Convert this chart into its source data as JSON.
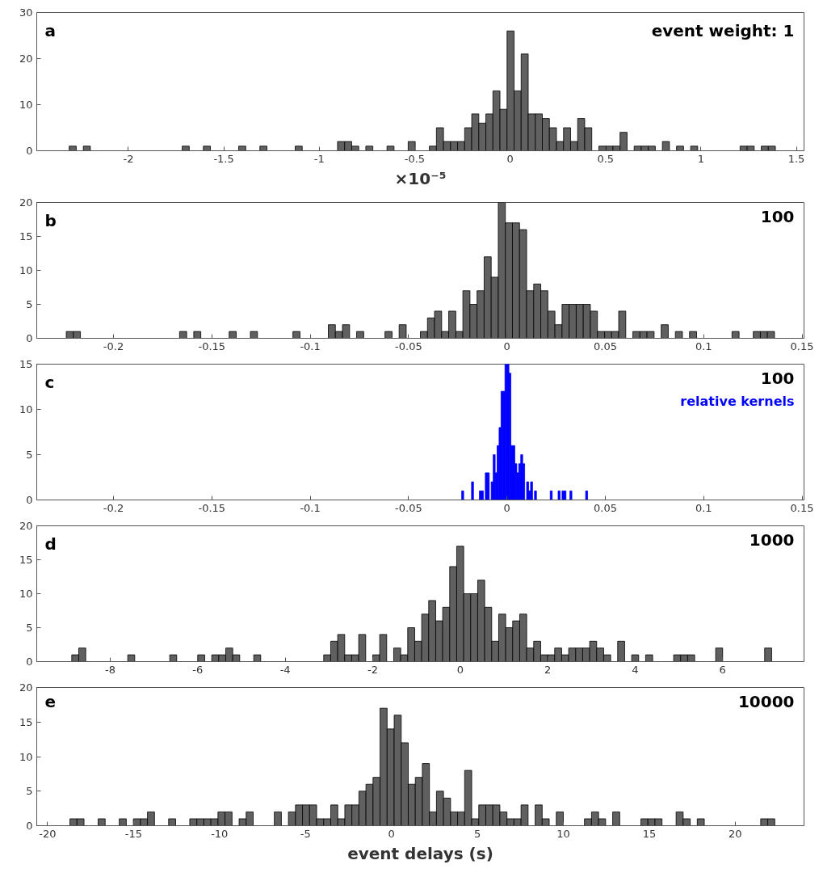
{
  "chart_data": [
    {
      "type": "histogram",
      "color": "#606060",
      "xlabel": "×10⁻⁵",
      "annotations": [
        "a",
        "event weight: 1"
      ],
      "xlim": [
        -2.48,
        1.54
      ],
      "xticks": [
        -2,
        -1.5,
        -1,
        -0.5,
        0,
        0.5,
        1,
        1.5
      ],
      "ylim": [
        0,
        30
      ],
      "yticks": [
        0,
        10,
        20,
        30
      ],
      "bins": [
        -2.31,
        -2.273,
        -2.236,
        -2.199,
        -2.162,
        -2.125,
        -2.088,
        -2.051,
        -2.014,
        -1.977,
        -1.94,
        -1.903,
        -1.866,
        -1.829,
        -1.792,
        -1.755,
        -1.718,
        -1.681,
        -1.644,
        -1.607,
        -1.57,
        -1.533,
        -1.496,
        -1.459,
        -1.422,
        -1.385,
        -1.348,
        -1.311,
        -1.274,
        -1.237,
        -1.2,
        -1.163,
        -1.126,
        -1.089,
        -1.052,
        -1.015,
        -0.978,
        -0.941,
        -0.904,
        -0.867,
        -0.83,
        -0.793,
        -0.756,
        -0.719,
        -0.682,
        -0.645,
        -0.608,
        -0.571,
        -0.534,
        -0.497,
        -0.46,
        -0.423,
        -0.386,
        -0.349,
        -0.312,
        -0.275,
        -0.238,
        -0.201,
        -0.164,
        -0.127,
        -0.09,
        -0.053,
        -0.016,
        0.021,
        0.058,
        0.095,
        0.132,
        0.169,
        0.206,
        0.243,
        0.28,
        0.317,
        0.354,
        0.391,
        0.428,
        0.465,
        0.502,
        0.539,
        0.576,
        0.613,
        0.65,
        0.687,
        0.724,
        0.761,
        0.798,
        0.835,
        0.872,
        0.909,
        0.946,
        0.983,
        1.02,
        1.057,
        1.094,
        1.131,
        1.168,
        1.205,
        1.242,
        1.279,
        1.316,
        1.353,
        1.39
      ],
      "values": [
        1,
        0,
        1,
        0,
        0,
        0,
        0,
        0,
        0,
        0,
        0,
        0,
        0,
        0,
        0,
        0,
        1,
        0,
        0,
        1,
        0,
        0,
        0,
        0,
        1,
        0,
        0,
        1,
        0,
        0,
        0,
        0,
        1,
        0,
        0,
        0,
        0,
        0,
        2,
        2,
        1,
        0,
        1,
        0,
        0,
        1,
        0,
        0,
        2,
        0,
        0,
        1,
        5,
        2,
        2,
        2,
        5,
        8,
        6,
        8,
        13,
        9,
        26,
        13,
        21,
        8,
        8,
        7,
        5,
        2,
        5,
        2,
        7,
        5,
        0,
        1,
        1,
        1,
        4,
        0,
        1,
        1,
        1,
        0,
        2,
        0,
        1,
        0,
        1,
        0,
        0,
        0,
        0,
        0,
        0,
        1,
        1,
        0,
        1,
        1
      ]
    },
    {
      "type": "histogram",
      "color": "#606060",
      "annotations": [
        "b",
        "100"
      ],
      "xlim": [
        -0.239,
        0.151
      ],
      "xticks": [
        -0.2,
        -0.15,
        -0.1,
        -0.05,
        0,
        0.05,
        0.1,
        0.15
      ],
      "ylim": [
        0,
        20
      ],
      "yticks": [
        0,
        5,
        10,
        15,
        20
      ],
      "bins": [
        -0.224,
        -0.2204,
        -0.2168,
        -0.2132,
        -0.2096,
        -0.206,
        -0.2024,
        -0.1988,
        -0.1952,
        -0.1916,
        -0.188,
        -0.1844,
        -0.1808,
        -0.1772,
        -0.1736,
        -0.17,
        -0.1664,
        -0.1628,
        -0.1592,
        -0.1556,
        -0.152,
        -0.1484,
        -0.1448,
        -0.1412,
        -0.1376,
        -0.134,
        -0.1304,
        -0.1268,
        -0.1232,
        -0.1196,
        -0.116,
        -0.1124,
        -0.1088,
        -0.1052,
        -0.1016,
        -0.098,
        -0.0944,
        -0.0908,
        -0.0872,
        -0.0836,
        -0.08,
        -0.0764,
        -0.0728,
        -0.0692,
        -0.0656,
        -0.062,
        -0.0584,
        -0.0548,
        -0.0512,
        -0.0476,
        -0.044,
        -0.0404,
        -0.0368,
        -0.0332,
        -0.0296,
        -0.026,
        -0.0224,
        -0.0188,
        -0.0152,
        -0.0116,
        -0.008,
        -0.0044,
        -0.0008,
        0.0028,
        0.0064,
        0.01,
        0.0136,
        0.0172,
        0.0208,
        0.0244,
        0.028,
        0.0316,
        0.0352,
        0.0388,
        0.0424,
        0.046,
        0.0496,
        0.0532,
        0.0568,
        0.0604,
        0.064,
        0.0676,
        0.0712,
        0.0748,
        0.0784,
        0.082,
        0.0856,
        0.0892,
        0.0928,
        0.0964,
        0.1,
        0.1036,
        0.1072,
        0.1108,
        0.1144,
        0.118,
        0.1216,
        0.1252,
        0.1288,
        0.1324,
        0.136
      ],
      "values": [
        1,
        1,
        0,
        0,
        0,
        0,
        0,
        0,
        0,
        0,
        0,
        0,
        0,
        0,
        0,
        0,
        1,
        0,
        1,
        0,
        0,
        0,
        0,
        1,
        0,
        0,
        1,
        0,
        0,
        0,
        0,
        0,
        1,
        0,
        0,
        0,
        0,
        2,
        1,
        2,
        0,
        1,
        0,
        0,
        0,
        1,
        0,
        2,
        0,
        0,
        1,
        3,
        4,
        1,
        4,
        1,
        7,
        5,
        7,
        12,
        9,
        20,
        17,
        17,
        16,
        7,
        8,
        7,
        4,
        2,
        5,
        5,
        5,
        5,
        4,
        1,
        1,
        1,
        4,
        0,
        1,
        1,
        1,
        0,
        2,
        0,
        1,
        0,
        1,
        0,
        0,
        0,
        0,
        0,
        1,
        0,
        0,
        1,
        1,
        1
      ]
    },
    {
      "type": "histogram",
      "color": "#0000ff",
      "annotations": [
        "c",
        "100",
        "relative kernels"
      ],
      "xlim": [
        -0.239,
        0.151
      ],
      "xticks": [
        -0.2,
        -0.15,
        -0.1,
        -0.05,
        0,
        0.05,
        0.1,
        0.15
      ],
      "ylim": [
        0,
        15
      ],
      "yticks": [
        0,
        5,
        10,
        15
      ],
      "bins": [
        -0.023,
        -0.022,
        -0.021,
        -0.02,
        -0.019,
        -0.018,
        -0.017,
        -0.016,
        -0.015,
        -0.014,
        -0.013,
        -0.012,
        -0.011,
        -0.01,
        -0.009,
        -0.008,
        -0.007,
        -0.006,
        -0.005,
        -0.004,
        -0.003,
        -0.002,
        -0.001,
        0,
        0.001,
        0.002,
        0.003,
        0.004,
        0.005,
        0.006,
        0.007,
        0.008,
        0.009,
        0.01,
        0.011,
        0.012,
        0.013,
        0.014,
        0.015,
        0.016,
        0.017,
        0.018,
        0.019,
        0.02,
        0.021,
        0.022,
        0.023,
        0.024,
        0.025,
        0.026,
        0.027,
        0.028,
        0.029,
        0.03,
        0.031,
        0.032,
        0.033,
        0.034,
        0.035,
        0.036,
        0.037,
        0.038,
        0.039,
        0.04,
        0.041
      ],
      "values": [
        1,
        0,
        0,
        0,
        0,
        2,
        0,
        0,
        0,
        1,
        1,
        0,
        3,
        3,
        0,
        2,
        5,
        3,
        6,
        8,
        12,
        12,
        15,
        15,
        14,
        6,
        6,
        4,
        3,
        4,
        5,
        4,
        0,
        2,
        1,
        2,
        0,
        1,
        0,
        0,
        0,
        0,
        0,
        0,
        0,
        1,
        0,
        0,
        0,
        1,
        0,
        1,
        1,
        0,
        0,
        1,
        0,
        0,
        0,
        0,
        0,
        0,
        0,
        1
      ]
    },
    {
      "type": "histogram",
      "color": "#606060",
      "annotations": [
        "d",
        "1000"
      ],
      "xlim": [
        -9.68,
        7.86
      ],
      "xticks": [
        -8,
        -6,
        -4,
        -2,
        0,
        2,
        4,
        6
      ],
      "ylim": [
        0,
        20
      ],
      "yticks": [
        0,
        5,
        10,
        15,
        20
      ],
      "bins": [
        -8.88,
        -8.72,
        -8.56,
        -8.4,
        -8.24,
        -8.08,
        -7.92,
        -7.76,
        -7.6,
        -7.44,
        -7.28,
        -7.12,
        -6.96,
        -6.8,
        -6.64,
        -6.48,
        -6.32,
        -6.16,
        -6.0,
        -5.84,
        -5.68,
        -5.52,
        -5.36,
        -5.2,
        -5.04,
        -4.88,
        -4.72,
        -4.56,
        -4.4,
        -4.24,
        -4.08,
        -3.92,
        -3.76,
        -3.6,
        -3.44,
        -3.28,
        -3.12,
        -2.96,
        -2.8,
        -2.64,
        -2.48,
        -2.32,
        -2.16,
        -2.0,
        -1.84,
        -1.68,
        -1.52,
        -1.36,
        -1.2,
        -1.04,
        -0.88,
        -0.72,
        -0.56,
        -0.4,
        -0.24,
        -0.08,
        0.08,
        0.24,
        0.4,
        0.56,
        0.72,
        0.88,
        1.04,
        1.2,
        1.36,
        1.52,
        1.68,
        1.84,
        2.0,
        2.16,
        2.32,
        2.48,
        2.64,
        2.8,
        2.96,
        3.12,
        3.28,
        3.44,
        3.6,
        3.76,
        3.92,
        4.08,
        4.24,
        4.4,
        4.56,
        4.72,
        4.88,
        5.04,
        5.2,
        5.36,
        5.52,
        5.68,
        5.84,
        6.0,
        6.16,
        6.32,
        6.48,
        6.64,
        6.8,
        6.96,
        7.12
      ],
      "values": [
        1,
        2,
        0,
        0,
        0,
        0,
        0,
        0,
        1,
        0,
        0,
        0,
        0,
        0,
        1,
        0,
        0,
        0,
        1,
        0,
        1,
        1,
        2,
        1,
        0,
        0,
        1,
        0,
        0,
        0,
        0,
        0,
        0,
        0,
        0,
        0,
        1,
        3,
        4,
        1,
        1,
        4,
        0,
        1,
        4,
        0,
        2,
        1,
        5,
        3,
        7,
        9,
        6,
        8,
        14,
        17,
        10,
        10,
        12,
        8,
        3,
        7,
        5,
        6,
        7,
        2,
        3,
        1,
        1,
        2,
        1,
        2,
        2,
        2,
        3,
        2,
        1,
        0,
        3,
        0,
        1,
        0,
        1,
        0,
        0,
        0,
        1,
        1,
        1,
        0,
        0,
        0,
        2,
        0,
        0,
        0,
        0,
        0,
        0,
        2
      ]
    },
    {
      "type": "histogram",
      "color": "#606060",
      "xlabel": "event delays (s)",
      "annotations": [
        "e",
        "10000"
      ],
      "xlim": [
        -20.63,
        24.0
      ],
      "xticks": [
        -20,
        -15,
        -10,
        -5,
        0,
        5,
        10,
        15,
        20
      ],
      "ylim": [
        0,
        20
      ],
      "yticks": [
        0,
        5,
        10,
        15,
        20
      ],
      "bins": [
        -18.7,
        -18.29,
        -17.88,
        -17.47,
        -17.06,
        -16.65,
        -16.24,
        -15.83,
        -15.42,
        -15.01,
        -14.6,
        -14.19,
        -13.78,
        -13.37,
        -12.96,
        -12.55,
        -12.14,
        -11.73,
        -11.32,
        -10.91,
        -10.5,
        -10.09,
        -9.68,
        -9.27,
        -8.86,
        -8.45,
        -8.04,
        -7.63,
        -7.22,
        -6.81,
        -6.4,
        -5.99,
        -5.58,
        -5.17,
        -4.76,
        -4.35,
        -3.94,
        -3.53,
        -3.12,
        -2.71,
        -2.3,
        -1.89,
        -1.48,
        -1.07,
        -0.66,
        -0.25,
        0.16,
        0.57,
        0.98,
        1.39,
        1.8,
        2.21,
        2.62,
        3.03,
        3.44,
        3.85,
        4.26,
        4.67,
        5.08,
        5.49,
        5.9,
        6.31,
        6.72,
        7.13,
        7.54,
        7.95,
        8.36,
        8.77,
        9.18,
        9.59,
        10.0,
        10.41,
        10.82,
        11.23,
        11.64,
        12.05,
        12.46,
        12.87,
        13.28,
        13.69,
        14.1,
        14.51,
        14.92,
        15.33,
        15.74,
        16.15,
        16.56,
        16.97,
        17.38,
        17.79,
        18.2,
        18.61,
        19.02,
        19.43,
        19.84,
        20.25,
        20.66,
        21.07,
        21.48,
        21.89,
        22.3
      ],
      "values": [
        1,
        1,
        0,
        0,
        1,
        0,
        0,
        1,
        0,
        1,
        1,
        2,
        0,
        0,
        1,
        0,
        0,
        1,
        1,
        1,
        1,
        2,
        2,
        0,
        1,
        2,
        0,
        0,
        0,
        2,
        0,
        2,
        3,
        3,
        3,
        1,
        1,
        3,
        1,
        3,
        3,
        5,
        6,
        7,
        17,
        14,
        16,
        12,
        6,
        7,
        9,
        2,
        5,
        4,
        2,
        2,
        8,
        1,
        3,
        3,
        3,
        2,
        1,
        1,
        3,
        0,
        3,
        1,
        0,
        2,
        0,
        0,
        0,
        1,
        2,
        1,
        0,
        2,
        0,
        0,
        0,
        1,
        1,
        1,
        0,
        0,
        2,
        1,
        0,
        1,
        0,
        0,
        0,
        0,
        0,
        0,
        0,
        0,
        1,
        1
      ]
    }
  ]
}
